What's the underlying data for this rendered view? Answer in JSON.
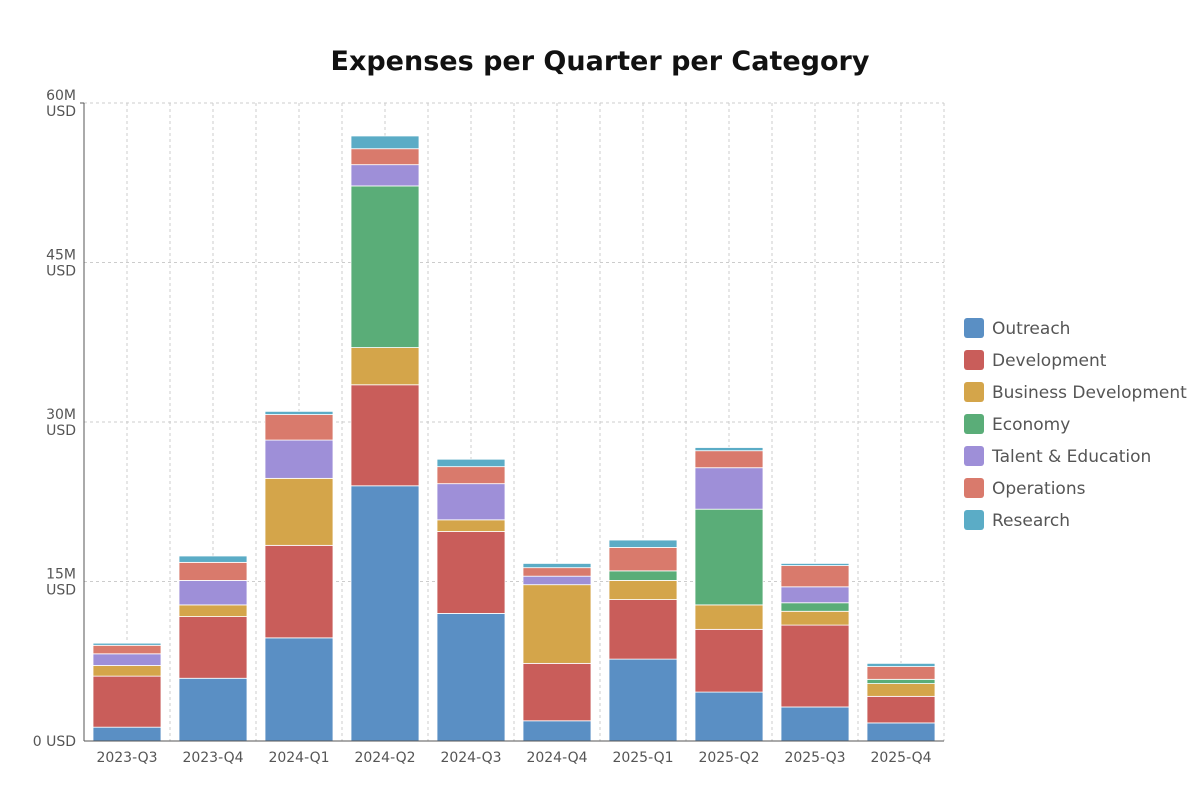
{
  "chart_data": {
    "type": "bar",
    "stacked": true,
    "title": "Expenses per Quarter per Category",
    "xlabel": "",
    "ylabel": "",
    "categories": [
      "2023-Q3",
      "2023-Q4",
      "2024-Q1",
      "2024-Q2",
      "2024-Q3",
      "2024-Q4",
      "2025-Q1",
      "2025-Q2",
      "2025-Q3",
      "2025-Q4"
    ],
    "series": [
      {
        "name": "Outreach",
        "color": "#5a8fc4",
        "values": [
          1.3,
          5.9,
          9.7,
          24.0,
          12.0,
          1.9,
          7.7,
          4.6,
          3.2,
          1.7
        ]
      },
      {
        "name": "Development",
        "color": "#c95d5a",
        "values": [
          4.8,
          5.8,
          8.7,
          9.5,
          7.7,
          5.4,
          5.6,
          5.9,
          7.7,
          2.5
        ]
      },
      {
        "name": "Business Development",
        "color": "#d4a54a",
        "values": [
          1.0,
          1.1,
          6.3,
          3.5,
          1.1,
          7.4,
          1.8,
          2.3,
          1.3,
          1.2
        ]
      },
      {
        "name": "Economy",
        "color": "#5aad78",
        "values": [
          0.0,
          0.0,
          0.0,
          15.2,
          0.0,
          0.0,
          0.9,
          9.0,
          0.8,
          0.4
        ]
      },
      {
        "name": "Talent & Education",
        "color": "#9e8fd8",
        "values": [
          1.1,
          2.3,
          3.6,
          2.0,
          3.4,
          0.8,
          0.0,
          3.9,
          1.5,
          0.0
        ]
      },
      {
        "name": "Operations",
        "color": "#d97a6c",
        "values": [
          0.8,
          1.7,
          2.4,
          1.5,
          1.6,
          0.8,
          2.2,
          1.6,
          2.0,
          1.2
        ]
      },
      {
        "name": "Research",
        "color": "#5bacc6",
        "values": [
          0.2,
          0.6,
          0.3,
          1.2,
          0.7,
          0.4,
          0.7,
          0.3,
          0.2,
          0.3
        ]
      }
    ],
    "ylim": [
      0,
      60
    ],
    "yticks": [
      {
        "value": 0,
        "lines": [
          "0 USD"
        ]
      },
      {
        "value": 15,
        "lines": [
          "15M",
          "USD"
        ]
      },
      {
        "value": 30,
        "lines": [
          "30M",
          "USD"
        ]
      },
      {
        "value": 45,
        "lines": [
          "45M",
          "USD"
        ]
      },
      {
        "value": 60,
        "lines": [
          "60M",
          "USD"
        ]
      }
    ],
    "grid": true,
    "legend_position": "right"
  }
}
